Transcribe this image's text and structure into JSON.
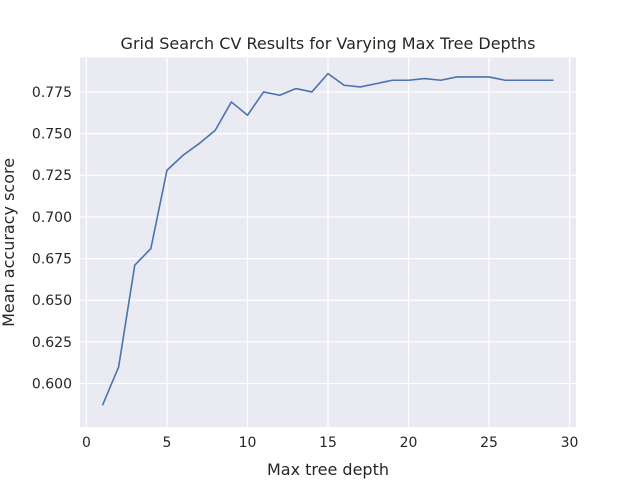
{
  "chart_data": {
    "type": "line",
    "title": "Grid Search CV Results for Varying Max Tree Depths",
    "xlabel": "Max tree depth",
    "ylabel": "Mean accuracy score",
    "xlim": [
      -0.4,
      30.4
    ],
    "ylim": [
      0.5738,
      0.7956
    ],
    "x_ticks": [
      0,
      5,
      10,
      15,
      20,
      25,
      30
    ],
    "y_ticks": [
      0.6,
      0.625,
      0.65,
      0.675,
      0.7,
      0.725,
      0.75,
      0.775
    ],
    "grid": true,
    "line_color": "#4c72b0",
    "background_color": "#eaeaf2",
    "series": [
      {
        "x": [
          1,
          2,
          3,
          4,
          5,
          6,
          7,
          8,
          9,
          10,
          11,
          12,
          13,
          14,
          15,
          16,
          17,
          18,
          19,
          20,
          21,
          22,
          23,
          24,
          25,
          26,
          27,
          28,
          29
        ],
        "values": [
          0.587,
          0.61,
          0.671,
          0.681,
          0.728,
          0.737,
          0.744,
          0.752,
          0.769,
          0.761,
          0.775,
          0.773,
          0.777,
          0.775,
          0.786,
          0.779,
          0.778,
          0.78,
          0.782,
          0.782,
          0.783,
          0.782,
          0.784,
          0.784,
          0.784,
          0.782,
          0.782,
          0.782,
          0.782
        ]
      }
    ]
  }
}
